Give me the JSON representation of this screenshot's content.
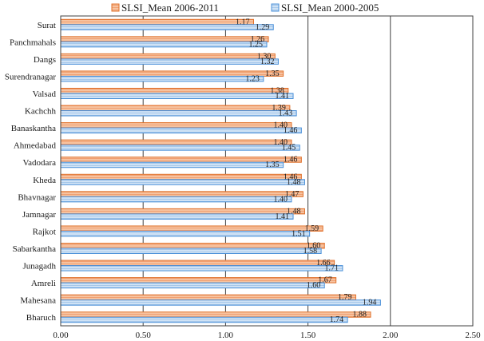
{
  "chart_data": {
    "type": "bar",
    "orientation": "horizontal",
    "categories": [
      "Surat",
      "Panchmahals",
      "Dangs",
      "Surendranagar",
      "Valsad",
      "Kachchh",
      "Banaskantha",
      "Ahmedabad",
      "Vadodara",
      "Kheda",
      "Bhavnagar",
      "Jamnagar",
      "Rajkot",
      "Sabarkantha",
      "Junagadh",
      "Amreli",
      "Mahesana",
      "Bharuch"
    ],
    "series": [
      {
        "name": "SLSI_Mean 2006-2011",
        "color": "#f4b183",
        "edge": "#e0702a",
        "values": [
          1.17,
          1.26,
          1.3,
          1.35,
          1.38,
          1.39,
          1.4,
          1.4,
          1.46,
          1.46,
          1.47,
          1.48,
          1.59,
          1.6,
          1.66,
          1.67,
          1.79,
          1.88
        ],
        "labels": [
          "1.17",
          "1.26",
          "1.30",
          "1.35",
          "1.38",
          "1.39",
          "1.40",
          "1.40",
          "1.46",
          "1.46",
          "1.47",
          "1.48",
          "1.59",
          "1.60",
          "1.66",
          "1.67",
          "1.79",
          "1.88"
        ]
      },
      {
        "name": "SLSI_Mean 2000-2005",
        "color": "#bdd7ee",
        "edge": "#4a90d9",
        "values": [
          1.29,
          1.25,
          1.32,
          1.23,
          1.41,
          1.43,
          1.46,
          1.45,
          1.35,
          1.48,
          1.4,
          1.41,
          1.51,
          1.58,
          1.71,
          1.6,
          1.94,
          1.74
        ],
        "labels": [
          "1.29",
          "1.25",
          "1.32",
          "1.23",
          "1.41",
          "1.43",
          "1.46",
          "1.45",
          "1.35",
          "1.48",
          "1.40",
          "1.41",
          "1.51",
          "1.58",
          "1.71",
          "1.60",
          "1.94",
          "1.74"
        ]
      }
    ],
    "xlim": [
      0,
      2.5
    ],
    "xticks": [
      "0.00",
      "0.50",
      "1.00",
      "1.50",
      "2.00",
      "2.50"
    ],
    "grid": true,
    "legend_position": "top"
  }
}
